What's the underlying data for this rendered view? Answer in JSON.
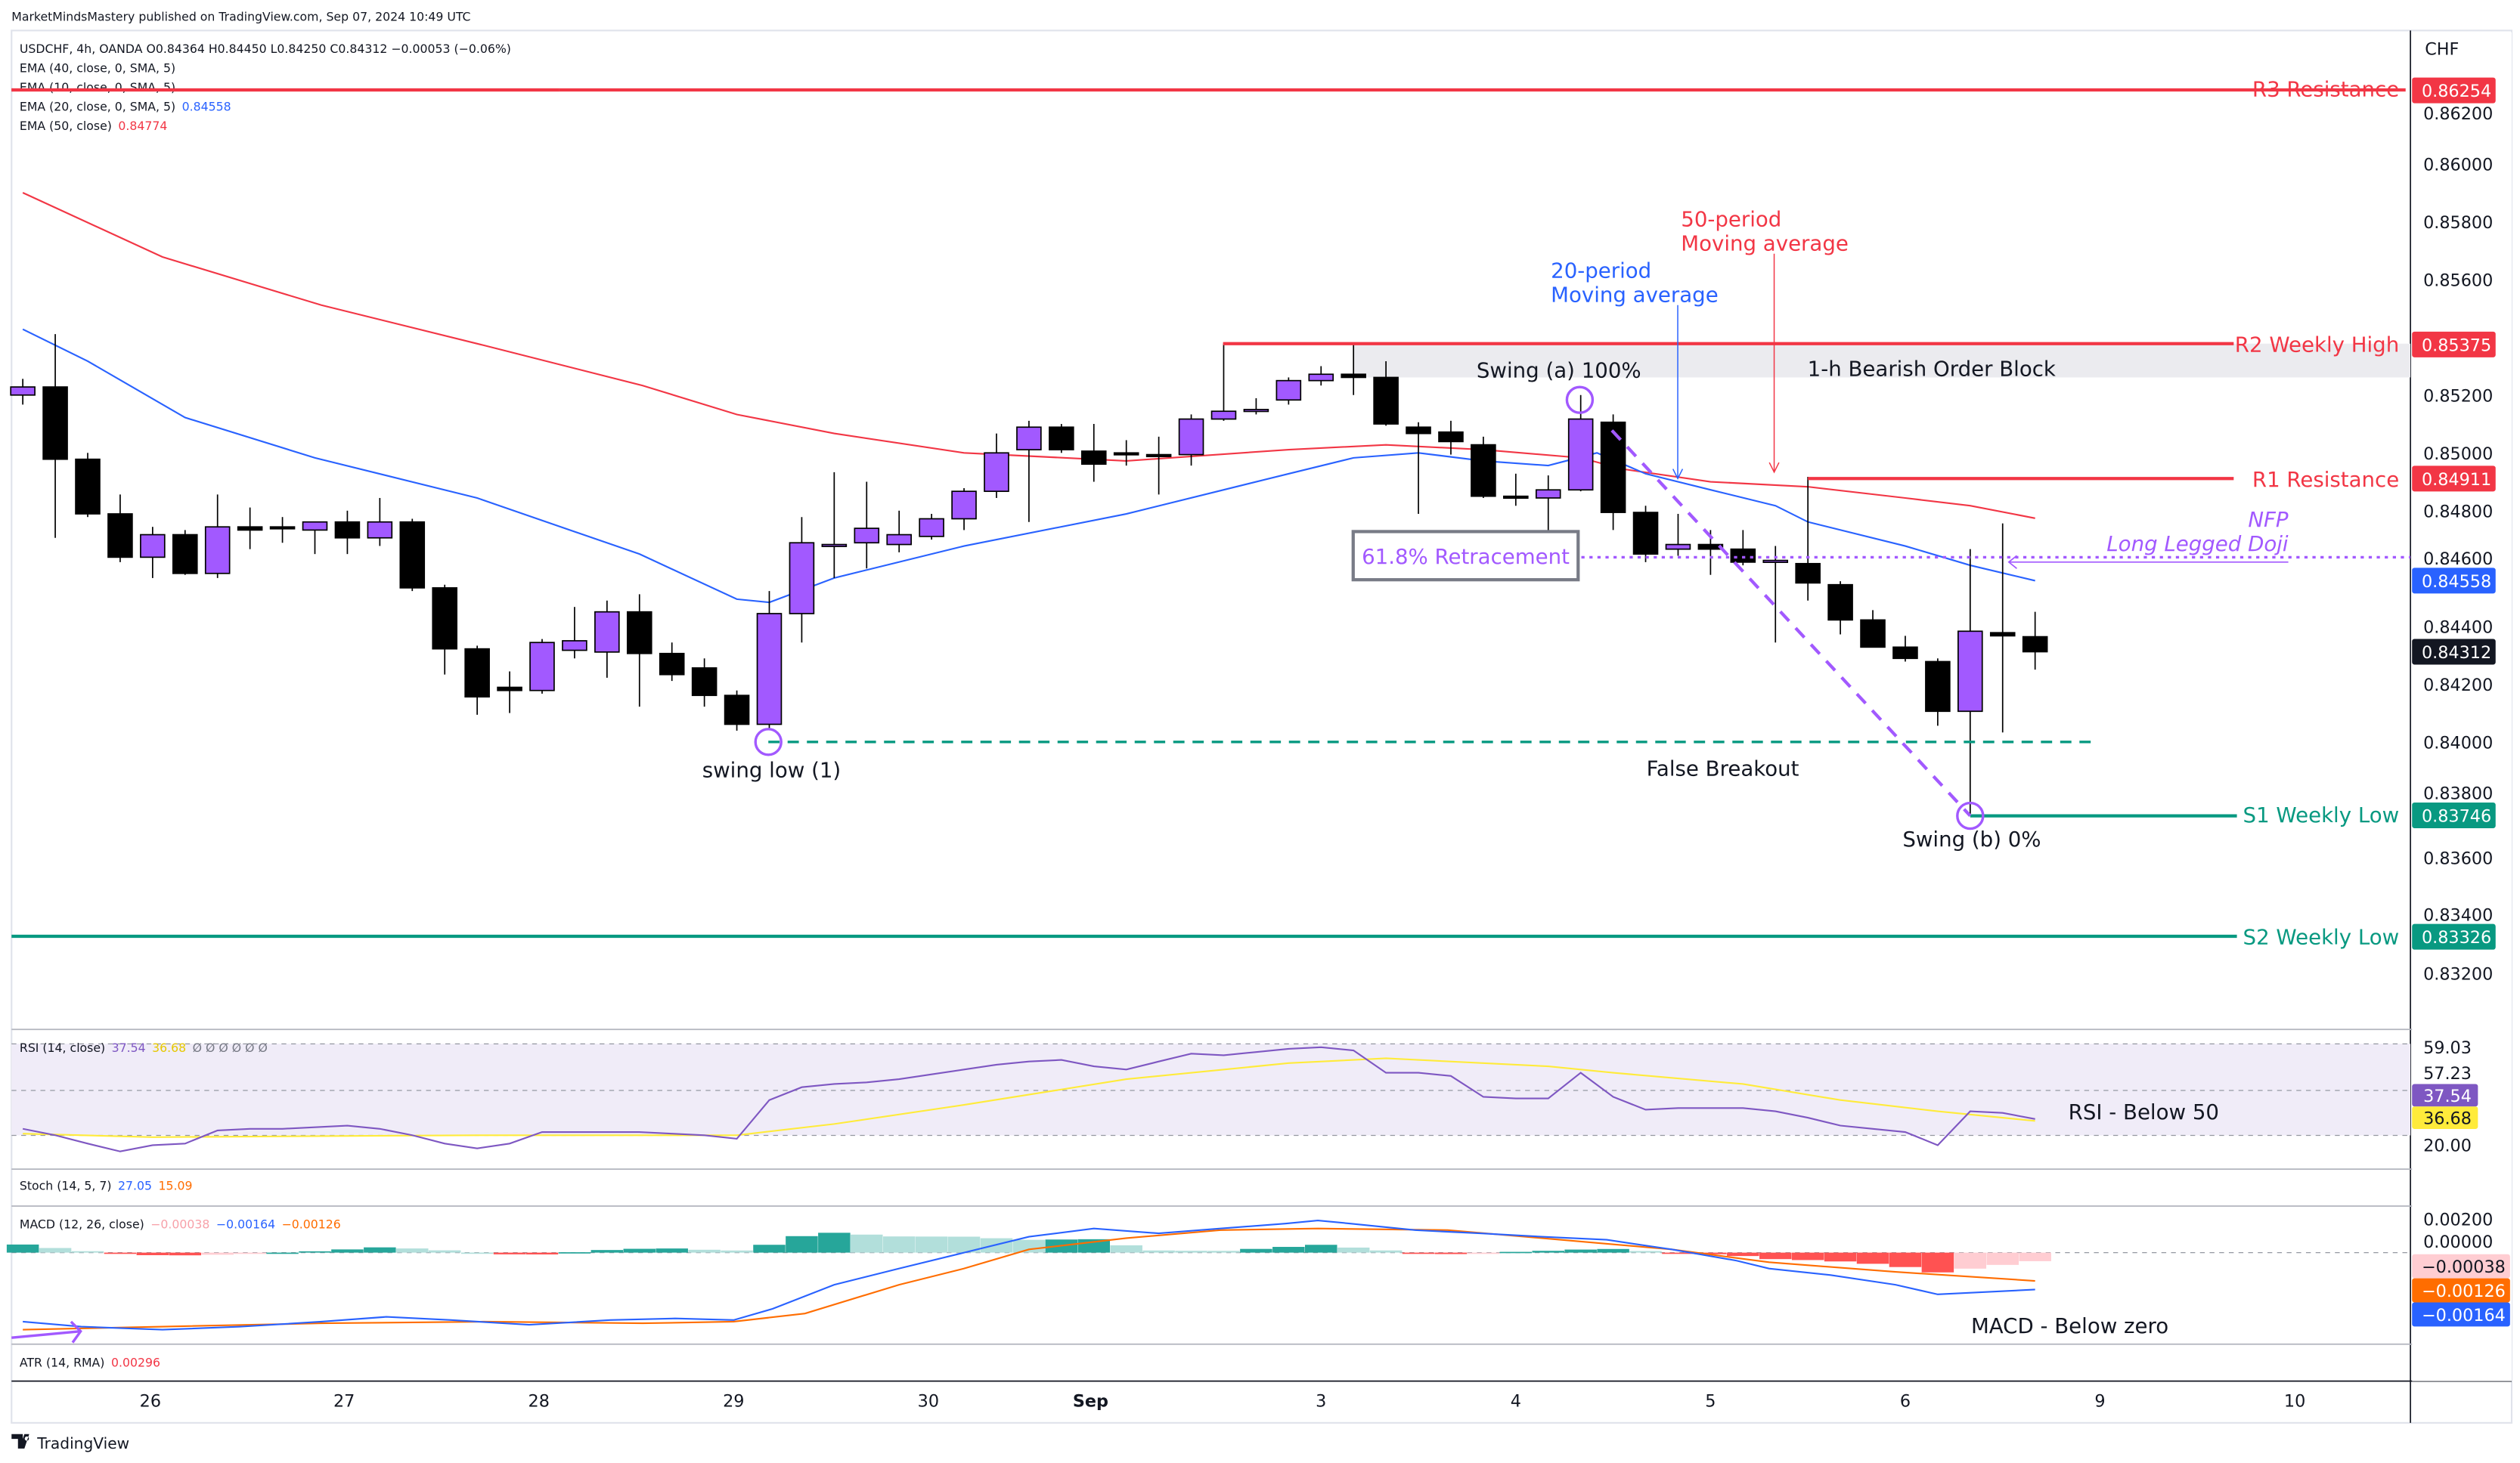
{
  "header": {
    "published": "MarketMindsMastery published on TradingView.com, Sep 07, 2024 10:49 UTC",
    "symbol_line": "USDCHF, 4h, OANDA  O0.84364  H0.84450  L0.84250  C0.84312  −0.00053 (−0.06%)",
    "ema40": "EMA (40, close, 0, SMA, 5)",
    "ema10": "EMA (10, close, 0, SMA, 5)",
    "ema20": "EMA (20, close, 0, SMA, 5)",
    "ema20_value": "0.84558",
    "ema50": "EMA (50, close)",
    "ema50_value": "0.84774"
  },
  "price_axis": {
    "currency": "CHF",
    "ticks": [
      "0.86200",
      "0.86000",
      "0.85800",
      "0.85600",
      "0.85200",
      "0.85000",
      "0.84800",
      "0.84600",
      "0.84400",
      "0.84200",
      "0.84000",
      "0.83800",
      "0.83600",
      "0.83400",
      "0.83200"
    ],
    "badges": {
      "r3": "0.86254",
      "r2": "0.85375",
      "r1": "0.84911",
      "ema20": "0.84558",
      "last": "0.84312",
      "s1": "0.83746",
      "s2": "0.83326"
    }
  },
  "levels": {
    "r3": {
      "label": "R3 Resistance",
      "price": 0.86254
    },
    "r2": {
      "label": "R2 Weekly High",
      "price": 0.85375
    },
    "r1": {
      "label": "R1 Resistance",
      "price": 0.84911
    },
    "s1": {
      "label": "S1 Weekly Low",
      "price": 0.83746
    },
    "s2": {
      "label": "S2 Weekly Low",
      "price": 0.83326
    }
  },
  "annotations": {
    "order_block": "1-h Bearish Order Block",
    "swing_a": "Swing (a) 100%",
    "swing_b": "Swing (b) 0%",
    "swing_low": "swing low (1)",
    "false_breakout": "False Breakout",
    "retracement": "61.8% Retracement",
    "nfp": "NFP",
    "doji": "Long Legged Doji",
    "ma20_line1": "20-period",
    "ma20_line2": "Moving average",
    "ma50_line1": "50-period",
    "ma50_line2": "Moving average",
    "rsi_note": "RSI - Below 50",
    "macd_note": "MACD - Below zero"
  },
  "rsi": {
    "label": "RSI (14, close)",
    "value": "37.54",
    "signal_value": "36.68",
    "extra": "Ø Ø Ø Ø Ø Ø",
    "axis": [
      "59.03",
      "57.23",
      "20.00"
    ],
    "badges": [
      "37.54",
      "36.68"
    ]
  },
  "stoch": {
    "label": "Stoch (14, 5, 7)",
    "k": "27.05",
    "d": "15.09"
  },
  "macd": {
    "label": "MACD (12, 26, close)",
    "hist": "−0.00038",
    "macd": "−0.00164",
    "signal": "−0.00126",
    "axis": [
      "0.00200",
      "0.00000"
    ],
    "badges": [
      "−0.00038",
      "−0.00126",
      "−0.00164"
    ]
  },
  "atr": {
    "label": "ATR (14, RMA)",
    "value": "0.00296"
  },
  "time_axis": [
    "26",
    "27",
    "28",
    "29",
    "30",
    "Sep",
    "3",
    "4",
    "5",
    "6",
    "9",
    "10"
  ],
  "footer": {
    "brand": "TradingView"
  },
  "colors": {
    "bull": "#a259ff",
    "bear": "#000000",
    "resistance": "#f23645",
    "support": "#089981",
    "ema20": "#2962ff",
    "ema50": "#f23645",
    "rsi": "#7e57c2",
    "rsi_signal": "#ffeb3b",
    "macd": "#2962ff",
    "macd_signal": "#ff6d00",
    "annotation": "#a259ff"
  },
  "chart_data": {
    "type": "candlestick",
    "symbol": "USDCHF",
    "timeframe": "4h",
    "ylim": [
      0.831,
      0.8645
    ],
    "candles_ohlc": [
      [
        0.852,
        0.85256,
        0.85167,
        0.85228
      ],
      [
        0.85228,
        0.85411,
        0.84706,
        0.84978
      ],
      [
        0.84978,
        0.85,
        0.84778,
        0.84789
      ],
      [
        0.84789,
        0.84856,
        0.84622,
        0.84639
      ],
      [
        0.84639,
        0.84744,
        0.84567,
        0.84717
      ],
      [
        0.84717,
        0.84733,
        0.84578,
        0.84583
      ],
      [
        0.84583,
        0.84856,
        0.84567,
        0.84744
      ],
      [
        0.84744,
        0.84811,
        0.84667,
        0.84733
      ],
      [
        0.84744,
        0.84778,
        0.84689,
        0.84739
      ],
      [
        0.84733,
        0.84761,
        0.8465,
        0.84761
      ],
      [
        0.84761,
        0.848,
        0.8465,
        0.84706
      ],
      [
        0.84706,
        0.84844,
        0.84678,
        0.84761
      ],
      [
        0.84761,
        0.84772,
        0.84522,
        0.84533
      ],
      [
        0.84533,
        0.84544,
        0.84233,
        0.84322
      ],
      [
        0.84322,
        0.84333,
        0.84094,
        0.84156
      ],
      [
        0.84189,
        0.84244,
        0.841,
        0.84178
      ],
      [
        0.84178,
        0.84356,
        0.84167,
        0.84344
      ],
      [
        0.84317,
        0.84467,
        0.84289,
        0.8435
      ],
      [
        0.84311,
        0.84489,
        0.84222,
        0.8445
      ],
      [
        0.8445,
        0.84511,
        0.84122,
        0.84306
      ],
      [
        0.84306,
        0.84344,
        0.84211,
        0.84233
      ],
      [
        0.84256,
        0.84289,
        0.84122,
        0.84161
      ],
      [
        0.84161,
        0.84178,
        0.84039,
        0.84061
      ],
      [
        0.84061,
        0.84522,
        0.84044,
        0.84444
      ],
      [
        0.84444,
        0.84778,
        0.84344,
        0.84689
      ],
      [
        0.84683,
        0.84933,
        0.84567,
        0.84683
      ],
      [
        0.84689,
        0.849,
        0.846,
        0.84739
      ],
      [
        0.84683,
        0.848,
        0.84656,
        0.84717
      ],
      [
        0.84711,
        0.84789,
        0.847,
        0.84772
      ],
      [
        0.84772,
        0.84878,
        0.84733,
        0.84867
      ],
      [
        0.84867,
        0.85067,
        0.84844,
        0.85
      ],
      [
        0.85011,
        0.85111,
        0.84761,
        0.85089
      ],
      [
        0.85089,
        0.851,
        0.85,
        0.85011
      ],
      [
        0.85006,
        0.851,
        0.849,
        0.84961
      ],
      [
        0.85,
        0.85044,
        0.84956,
        0.84994
      ],
      [
        0.84994,
        0.85056,
        0.84856,
        0.84989
      ],
      [
        0.84994,
        0.85133,
        0.84956,
        0.85117
      ],
      [
        0.85117,
        0.85378,
        0.85111,
        0.85144
      ],
      [
        0.8515,
        0.85189,
        0.85133,
        0.8515
      ],
      [
        0.85183,
        0.85261,
        0.85167,
        0.8525
      ],
      [
        0.8525,
        0.853,
        0.85233,
        0.85272
      ],
      [
        0.85272,
        0.85378,
        0.852,
        0.85261
      ],
      [
        0.85261,
        0.85317,
        0.85094,
        0.851
      ],
      [
        0.85089,
        0.85106,
        0.84789,
        0.85067
      ],
      [
        0.85072,
        0.85111,
        0.84994,
        0.85039
      ],
      [
        0.85028,
        0.85056,
        0.84844,
        0.8485
      ],
      [
        0.8485,
        0.84928,
        0.84817,
        0.84844
      ],
      [
        0.84844,
        0.84922,
        0.84711,
        0.84872
      ],
      [
        0.84872,
        0.852,
        0.84867,
        0.85117
      ],
      [
        0.85106,
        0.85133,
        0.84733,
        0.84794
      ],
      [
        0.84794,
        0.84817,
        0.84622,
        0.8465
      ],
      [
        0.84667,
        0.84789,
        0.84644,
        0.84683
      ],
      [
        0.84683,
        0.84733,
        0.84578,
        0.84667
      ],
      [
        0.84667,
        0.84733,
        0.84611,
        0.84622
      ],
      [
        0.84628,
        0.84678,
        0.84344,
        0.84628
      ],
      [
        0.84617,
        0.84917,
        0.84489,
        0.8455
      ],
      [
        0.84544,
        0.84556,
        0.84372,
        0.84422
      ],
      [
        0.84422,
        0.84456,
        0.84328,
        0.84328
      ],
      [
        0.84328,
        0.84367,
        0.84278,
        0.84289
      ],
      [
        0.84278,
        0.84289,
        0.84056,
        0.84106
      ],
      [
        0.84106,
        0.84667,
        0.83746,
        0.84383
      ],
      [
        0.84378,
        0.84756,
        0.84033,
        0.84367
      ],
      [
        0.84364,
        0.8445,
        0.8425,
        0.84312
      ]
    ],
    "ema50_by_bar": [
      [
        0,
        0.859
      ],
      [
        4.3,
        0.85678
      ],
      [
        9.2,
        0.85511
      ],
      [
        14.2,
        0.85372
      ],
      [
        19.1,
        0.85233
      ],
      [
        22,
        0.85133
      ],
      [
        25,
        0.85067
      ],
      [
        29,
        0.85
      ],
      [
        34,
        0.84972
      ],
      [
        39,
        0.85011
      ],
      [
        42,
        0.85028
      ],
      [
        45,
        0.85011
      ],
      [
        48,
        0.84983
      ],
      [
        49.3,
        0.84944
      ],
      [
        52,
        0.849
      ],
      [
        55,
        0.84883
      ],
      [
        58,
        0.84844
      ],
      [
        60,
        0.84817
      ],
      [
        62,
        0.84774
      ]
    ],
    "ema20_by_bar": [
      [
        0,
        0.85428
      ],
      [
        2,
        0.85317
      ],
      [
        5,
        0.85122
      ],
      [
        9,
        0.84983
      ],
      [
        14,
        0.84844
      ],
      [
        19,
        0.8465
      ],
      [
        22,
        0.84494
      ],
      [
        23,
        0.84483
      ],
      [
        25,
        0.84567
      ],
      [
        29,
        0.84678
      ],
      [
        34,
        0.84789
      ],
      [
        37,
        0.84872
      ],
      [
        39,
        0.84928
      ],
      [
        41,
        0.84983
      ],
      [
        43,
        0.85
      ],
      [
        45,
        0.84972
      ],
      [
        47,
        0.84956
      ],
      [
        48.5,
        0.85
      ],
      [
        50,
        0.84928
      ],
      [
        52,
        0.84872
      ],
      [
        54,
        0.84817
      ],
      [
        55,
        0.84761
      ],
      [
        58,
        0.84678
      ],
      [
        60,
        0.84611
      ],
      [
        62,
        0.84558
      ]
    ],
    "rsi": [
      33.2,
      30.4,
      26.8,
      23.3,
      26.1,
      26.8,
      32.5,
      33.2,
      33.2,
      33.9,
      34.6,
      33.2,
      30.4,
      26.8,
      24.7,
      26.8,
      31.8,
      31.8,
      31.8,
      31.8,
      31.1,
      30.4,
      28.9,
      45.8,
      51.4,
      52.8,
      53.5,
      54.9,
      57.0,
      59.1,
      61.2,
      62.6,
      63.3,
      60.5,
      59.1,
      62.6,
      66.1,
      65.4,
      66.8,
      68.2,
      68.9,
      67.5,
      57.7,
      57.7,
      56.3,
      47.2,
      46.5,
      46.5,
      57.7,
      47.2,
      41.6,
      42.3,
      42.3,
      42.3,
      40.9,
      38.1,
      34.6,
      33.2,
      31.8,
      26.1,
      40.9,
      40.2,
      37.54
    ],
    "rsi_signal_by_bar": [
      [
        0,
        31.1
      ],
      [
        4,
        29.6
      ],
      [
        14,
        30.4
      ],
      [
        22,
        30.4
      ],
      [
        25,
        35.3
      ],
      [
        29,
        43.7
      ],
      [
        34,
        54.9
      ],
      [
        39,
        61.9
      ],
      [
        42,
        64.0
      ],
      [
        47,
        60.5
      ],
      [
        49,
        57.7
      ],
      [
        53,
        52.8
      ],
      [
        56,
        45.8
      ],
      [
        59,
        40.9
      ],
      [
        62,
        36.68
      ]
    ],
    "rsi_bands": [
      70,
      50,
      30
    ],
    "macd_by_bar": [
      [
        0,
        -0.00307
      ],
      [
        1.8,
        -0.00329
      ],
      [
        4.3,
        -0.00343
      ],
      [
        6.7,
        -0.00329
      ],
      [
        9.2,
        -0.00307
      ],
      [
        11.2,
        -0.00286
      ],
      [
        13.2,
        -0.003
      ],
      [
        15.6,
        -0.00321
      ],
      [
        18.1,
        -0.003
      ],
      [
        20.1,
        -0.00293
      ],
      [
        21.9,
        -0.003
      ],
      [
        23.1,
        -0.0025
      ],
      [
        25,
        -0.00143
      ],
      [
        27,
        -0.00071
      ],
      [
        29,
        0.0
      ],
      [
        31,
        0.00071
      ],
      [
        33,
        0.00107
      ],
      [
        35,
        0.00086
      ],
      [
        36.9,
        0.00107
      ],
      [
        38.9,
        0.00129
      ],
      [
        39.9,
        0.00143
      ],
      [
        40.9,
        0.00129
      ],
      [
        42.9,
        0.001
      ],
      [
        44.9,
        0.00086
      ],
      [
        46.8,
        0.00071
      ],
      [
        48.8,
        0.00057
      ],
      [
        50.8,
        0.00014
      ],
      [
        52.8,
        -0.00036
      ],
      [
        53.8,
        -0.00071
      ],
      [
        55.7,
        -0.001
      ],
      [
        57.7,
        -0.00143
      ],
      [
        59,
        -0.00186
      ],
      [
        62,
        -0.00164
      ]
    ],
    "macd_signal_by_bar": [
      [
        0,
        -0.00343
      ],
      [
        4.3,
        -0.00329
      ],
      [
        9.2,
        -0.00314
      ],
      [
        14.2,
        -0.00307
      ],
      [
        19.1,
        -0.00314
      ],
      [
        21.9,
        -0.00307
      ],
      [
        24.1,
        -0.00271
      ],
      [
        27,
        -0.00143
      ],
      [
        29,
        -0.00071
      ],
      [
        31,
        0.00014
      ],
      [
        34,
        0.00064
      ],
      [
        36.9,
        0.001
      ],
      [
        39.9,
        0.00107
      ],
      [
        43.9,
        0.001
      ],
      [
        46.8,
        0.00064
      ],
      [
        50.8,
        0.00014
      ],
      [
        53.8,
        -0.00043
      ],
      [
        57.7,
        -0.00086
      ],
      [
        62,
        -0.00126
      ]
    ]
  }
}
